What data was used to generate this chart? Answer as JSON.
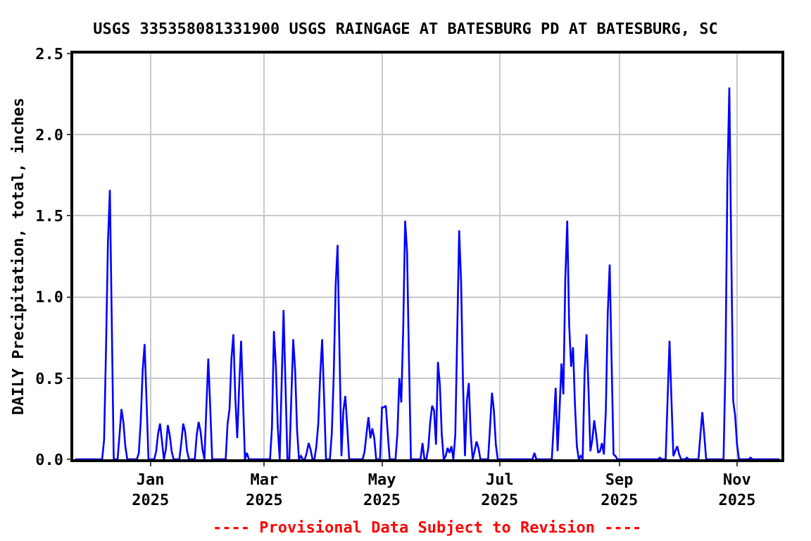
{
  "chart_data": {
    "type": "line",
    "title": "USGS 335358081331900 USGS RAINGAGE AT BATESBURG PD AT BATESBURG, SC",
    "ylabel": "DAILY Precipitation, total, inches",
    "annotations": [
      "---- Provisional Data Subject to Revision ----"
    ],
    "xlim": [
      "2024-11-22",
      "2025-11-24"
    ],
    "xticks": [
      {
        "value": "2025-01-01",
        "label": "Jan\n2025"
      },
      {
        "value": "2025-03-01",
        "label": "Mar\n2025"
      },
      {
        "value": "2025-05-01",
        "label": "May\n2025"
      },
      {
        "value": "2025-07-01",
        "label": "Jul\n2025"
      },
      {
        "value": "2025-09-01",
        "label": "Sep\n2025"
      },
      {
        "value": "2025-11-01",
        "label": "Nov\n2025"
      }
    ],
    "ylim": [
      0,
      2.5
    ],
    "yticks": [
      {
        "value": 0,
        "label": "0.0"
      },
      {
        "value": 0.5,
        "label": "0.5"
      },
      {
        "value": 1,
        "label": "1.0"
      },
      {
        "value": 1.5,
        "label": "1.5"
      },
      {
        "value": 2,
        "label": "2.0"
      },
      {
        "value": 2.5,
        "label": "2.5"
      }
    ],
    "grid": true,
    "marker": "none",
    "line_style": "solid",
    "series": [
      {
        "color": "#0000ff",
        "x": [
          "2024-11-23",
          "2024-12-07",
          "2024-12-08",
          "2024-12-09",
          "2024-12-10",
          "2024-12-11",
          "2024-12-12",
          "2024-12-13",
          "2024-12-15",
          "2024-12-16",
          "2024-12-17",
          "2024-12-18",
          "2024-12-19",
          "2024-12-20",
          "2024-12-25",
          "2024-12-26",
          "2024-12-27",
          "2024-12-28",
          "2024-12-29",
          "2024-12-30",
          "2024-12-31",
          "2025-01-03",
          "2025-01-04",
          "2025-01-05",
          "2025-01-06",
          "2025-01-07",
          "2025-01-08",
          "2025-01-09",
          "2025-01-10",
          "2025-01-11",
          "2025-01-12",
          "2025-01-13",
          "2025-01-16",
          "2025-01-17",
          "2025-01-18",
          "2025-01-19",
          "2025-01-20",
          "2025-01-21",
          "2025-01-24",
          "2025-01-25",
          "2025-01-26",
          "2025-01-27",
          "2025-01-28",
          "2025-01-29",
          "2025-01-30",
          "2025-01-31",
          "2025-02-01",
          "2025-02-02",
          "2025-02-09",
          "2025-02-10",
          "2025-02-11",
          "2025-02-12",
          "2025-02-13",
          "2025-02-14",
          "2025-02-15",
          "2025-02-16",
          "2025-02-17",
          "2025-02-18",
          "2025-02-19",
          "2025-02-20",
          "2025-02-21",
          "2025-03-04",
          "2025-03-05",
          "2025-03-06",
          "2025-03-07",
          "2025-03-08",
          "2025-03-09",
          "2025-03-10",
          "2025-03-11",
          "2025-03-12",
          "2025-03-13",
          "2025-03-14",
          "2025-03-15",
          "2025-03-16",
          "2025-03-17",
          "2025-03-18",
          "2025-03-19",
          "2025-03-20",
          "2025-03-21",
          "2025-03-22",
          "2025-03-23",
          "2025-03-24",
          "2025-03-25",
          "2025-03-26",
          "2025-03-27",
          "2025-03-28",
          "2025-03-29",
          "2025-03-30",
          "2025-03-31",
          "2025-04-01",
          "2025-04-02",
          "2025-04-04",
          "2025-04-05",
          "2025-04-06",
          "2025-04-07",
          "2025-04-08",
          "2025-04-09",
          "2025-04-10",
          "2025-04-11",
          "2025-04-12",
          "2025-04-13",
          "2025-04-14",
          "2025-04-21",
          "2025-04-22",
          "2025-04-23",
          "2025-04-24",
          "2025-04-25",
          "2025-04-26",
          "2025-04-27",
          "2025-04-28",
          "2025-04-30",
          "2025-05-01",
          "2025-05-02",
          "2025-05-03",
          "2025-05-04",
          "2025-05-05",
          "2025-05-08",
          "2025-05-09",
          "2025-05-10",
          "2025-05-11",
          "2025-05-12",
          "2025-05-13",
          "2025-05-14",
          "2025-05-15",
          "2025-05-16",
          "2025-05-21",
          "2025-05-22",
          "2025-05-23",
          "2025-05-24",
          "2025-05-25",
          "2025-05-26",
          "2025-05-27",
          "2025-05-28",
          "2025-05-29",
          "2025-05-30",
          "2025-05-31",
          "2025-06-01",
          "2025-06-02",
          "2025-06-03",
          "2025-06-04",
          "2025-06-05",
          "2025-06-06",
          "2025-06-07",
          "2025-06-08",
          "2025-06-09",
          "2025-06-10",
          "2025-06-11",
          "2025-06-12",
          "2025-06-13",
          "2025-06-14",
          "2025-06-15",
          "2025-06-16",
          "2025-06-17",
          "2025-06-18",
          "2025-06-19",
          "2025-06-20",
          "2025-06-21",
          "2025-06-25",
          "2025-06-26",
          "2025-06-27",
          "2025-06-28",
          "2025-06-29",
          "2025-06-30",
          "2025-07-18",
          "2025-07-19",
          "2025-07-20",
          "2025-07-28",
          "2025-07-29",
          "2025-07-30",
          "2025-07-31",
          "2025-08-01",
          "2025-08-02",
          "2025-08-03",
          "2025-08-04",
          "2025-08-05",
          "2025-08-06",
          "2025-08-07",
          "2025-08-08",
          "2025-08-09",
          "2025-08-10",
          "2025-08-11",
          "2025-08-12",
          "2025-08-13",
          "2025-08-14",
          "2025-08-15",
          "2025-08-16",
          "2025-08-17",
          "2025-08-18",
          "2025-08-19",
          "2025-08-20",
          "2025-08-21",
          "2025-08-22",
          "2025-08-23",
          "2025-08-24",
          "2025-08-25",
          "2025-08-26",
          "2025-08-27",
          "2025-08-28",
          "2025-08-29",
          "2025-08-30",
          "2025-08-31",
          "2025-09-21",
          "2025-09-22",
          "2025-09-23",
          "2025-09-25",
          "2025-09-26",
          "2025-09-27",
          "2025-09-28",
          "2025-09-29",
          "2025-09-30",
          "2025-10-01",
          "2025-10-02",
          "2025-10-03",
          "2025-10-05",
          "2025-10-06",
          "2025-10-07",
          "2025-10-12",
          "2025-10-13",
          "2025-10-14",
          "2025-10-15",
          "2025-10-16",
          "2025-10-25",
          "2025-10-26",
          "2025-10-27",
          "2025-10-28",
          "2025-10-29",
          "2025-10-30",
          "2025-10-31",
          "2025-11-01",
          "2025-11-02",
          "2025-11-07",
          "2025-11-08",
          "2025-11-09",
          "2025-11-23"
        ],
        "values": [
          0,
          0,
          0.12,
          0.68,
          1.34,
          1.66,
          0.83,
          0,
          0,
          0.15,
          0.31,
          0.23,
          0.08,
          0,
          0,
          0.04,
          0.24,
          0.55,
          0.71,
          0.36,
          0,
          0,
          0.05,
          0.16,
          0.22,
          0.11,
          0,
          0.06,
          0.21,
          0.15,
          0.05,
          0,
          0,
          0.1,
          0.22,
          0.17,
          0.05,
          0,
          0,
          0.15,
          0.23,
          0.17,
          0.06,
          0,
          0.32,
          0.62,
          0.32,
          0,
          0,
          0.22,
          0.31,
          0.62,
          0.77,
          0.38,
          0.13,
          0.45,
          0.73,
          0.36,
          0,
          0.04,
          0,
          0,
          0.2,
          0.79,
          0.58,
          0.2,
          0,
          0.46,
          0.92,
          0.46,
          0,
          0,
          0.37,
          0.74,
          0.55,
          0.18,
          0,
          0.02,
          0,
          0,
          0.04,
          0.1,
          0.06,
          0,
          0,
          0.08,
          0.22,
          0.52,
          0.74,
          0.38,
          0,
          0,
          0.16,
          0.52,
          1.07,
          1.32,
          0.66,
          0.02,
          0.3,
          0.39,
          0.2,
          0,
          0,
          0.05,
          0.16,
          0.26,
          0.13,
          0.19,
          0.13,
          0,
          0,
          0.32,
          0.32,
          0.33,
          0.16,
          0,
          0,
          0.16,
          0.5,
          0.35,
          0.8,
          1.47,
          1.28,
          0.61,
          0,
          0,
          0.1,
          0,
          0,
          0.07,
          0.23,
          0.33,
          0.3,
          0.09,
          0.6,
          0.46,
          0.15,
          0,
          0.02,
          0.07,
          0.04,
          0.08,
          0,
          0.15,
          0.78,
          1.41,
          1.09,
          0.46,
          0.02,
          0.36,
          0.47,
          0.15,
          0,
          0.05,
          0.11,
          0.07,
          0,
          0,
          0.2,
          0.41,
          0.3,
          0.09,
          0,
          0,
          0.04,
          0,
          0,
          0.21,
          0.44,
          0.05,
          0.3,
          0.59,
          0.4,
          1.11,
          1.47,
          0.83,
          0.57,
          0.69,
          0.34,
          0.08,
          0,
          0.02,
          0,
          0.53,
          0.77,
          0.44,
          0.05,
          0.12,
          0.24,
          0.15,
          0.04,
          0.05,
          0.1,
          0.03,
          0.3,
          0.9,
          1.2,
          0.6,
          0.03,
          0.02,
          0,
          0,
          0.01,
          0,
          0,
          0.37,
          0.73,
          0.37,
          0.02,
          0.05,
          0.08,
          0.03,
          0,
          0,
          0.01,
          0,
          0,
          0.15,
          0.29,
          0.15,
          0,
          0,
          0.58,
          1.72,
          2.29,
          1.28,
          0.36,
          0.27,
          0.09,
          0,
          0,
          0.01,
          0,
          0
        ]
      }
    ]
  }
}
